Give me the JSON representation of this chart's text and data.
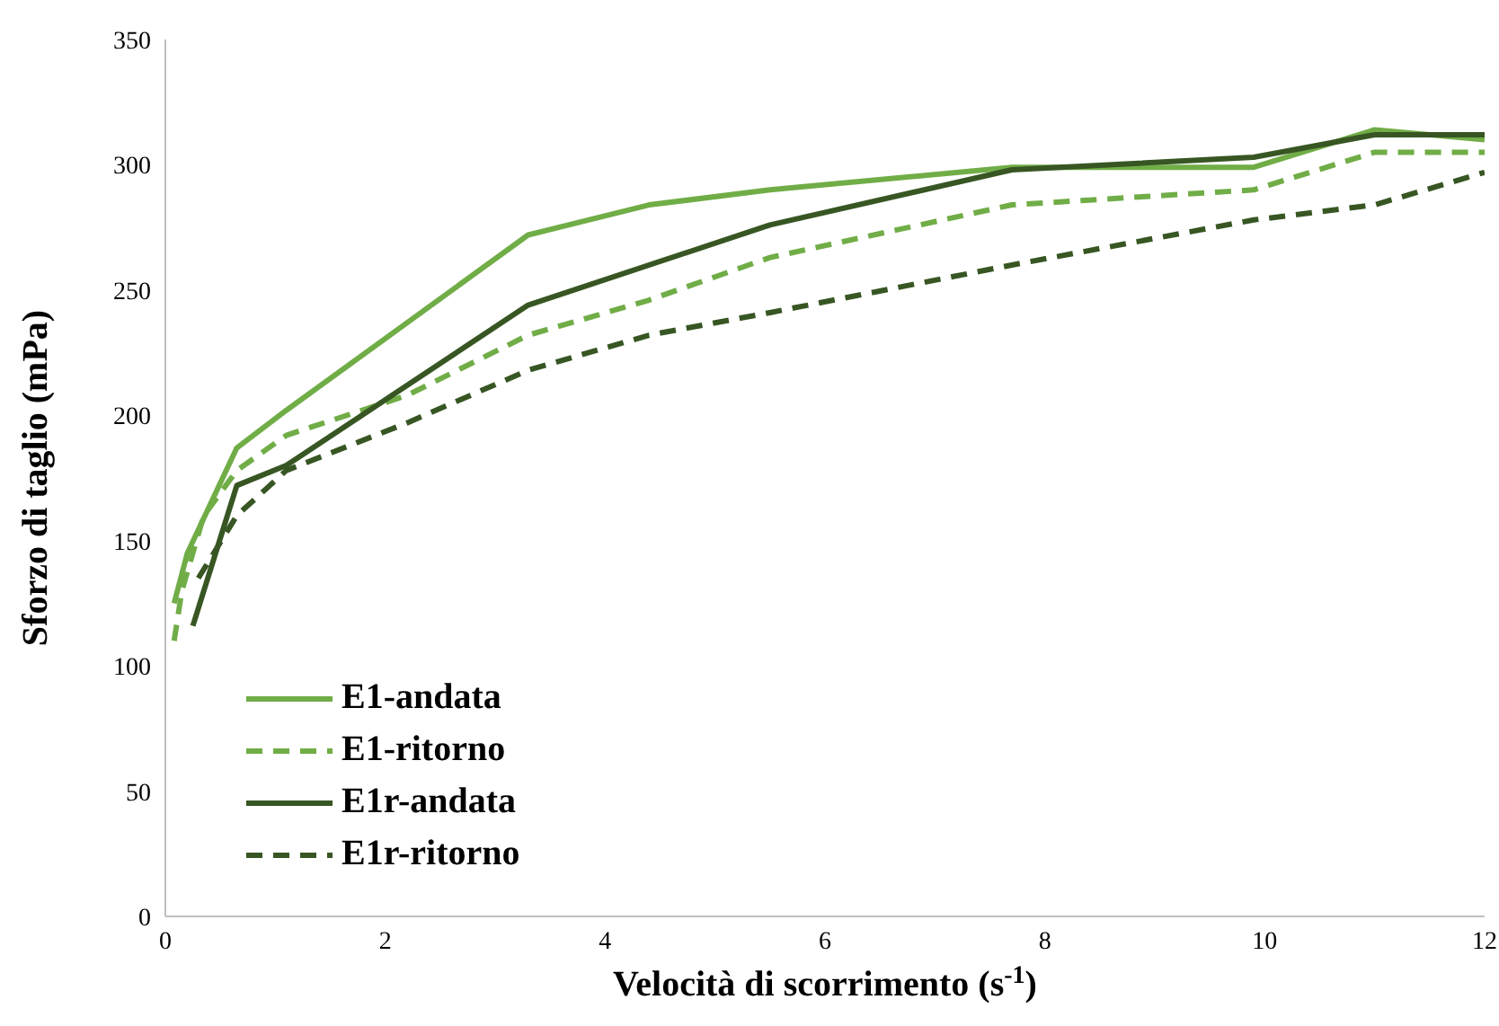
{
  "chart_data": {
    "type": "line",
    "xlabel": "Velocità di scorrimento (s$^{-1}$)",
    "ylabel": "Sforzo di taglio (mPa)",
    "xlim": [
      0,
      12
    ],
    "xticks": [
      0,
      2,
      4,
      6,
      8,
      10,
      12
    ],
    "ylim": [
      0,
      350
    ],
    "yticks": [
      0,
      50,
      100,
      150,
      200,
      250,
      300,
      350
    ],
    "grid": false,
    "legend": "bottom left",
    "marker": "none",
    "series": [
      {
        "name": "E1-andata",
        "color": "#70ad47",
        "line_style": "solid",
        "x": [
          0.08,
          0.2,
          0.65,
          1.1,
          3.3,
          4.4,
          5.5,
          7.7,
          9.9,
          11,
          12
        ],
        "values": [
          125,
          145,
          187,
          202,
          272,
          284,
          290,
          299,
          299,
          314,
          310
        ]
      },
      {
        "name": "E1-ritorno",
        "color": "#70ad47",
        "line_style": "dashed",
        "x": [
          0.08,
          0.15,
          0.35,
          0.65,
          1.1,
          2.2,
          3.3,
          4.4,
          5.5,
          7.7,
          9.9,
          11,
          12
        ],
        "values": [
          110,
          130,
          160,
          178,
          192,
          208,
          232,
          246,
          263,
          284,
          290,
          305,
          305
        ]
      },
      {
        "name": "E1r-andata",
        "color": "#375623",
        "line_style": "solid",
        "x": [
          0.25,
          0.65,
          1.1,
          3.3,
          5.5,
          7.7,
          9.9,
          11,
          12
        ],
        "values": [
          116,
          172,
          180,
          244,
          276,
          298,
          303,
          312,
          312
        ]
      },
      {
        "name": "E1r-ritorno",
        "color": "#375623",
        "line_style": "dashed",
        "x": [
          0.3,
          0.65,
          1.1,
          2.2,
          3.3,
          4.4,
          5.5,
          7.7,
          9.9,
          11,
          12
        ],
        "values": [
          135,
          160,
          178,
          197,
          218,
          232,
          241,
          260,
          278,
          284,
          297
        ]
      }
    ]
  }
}
